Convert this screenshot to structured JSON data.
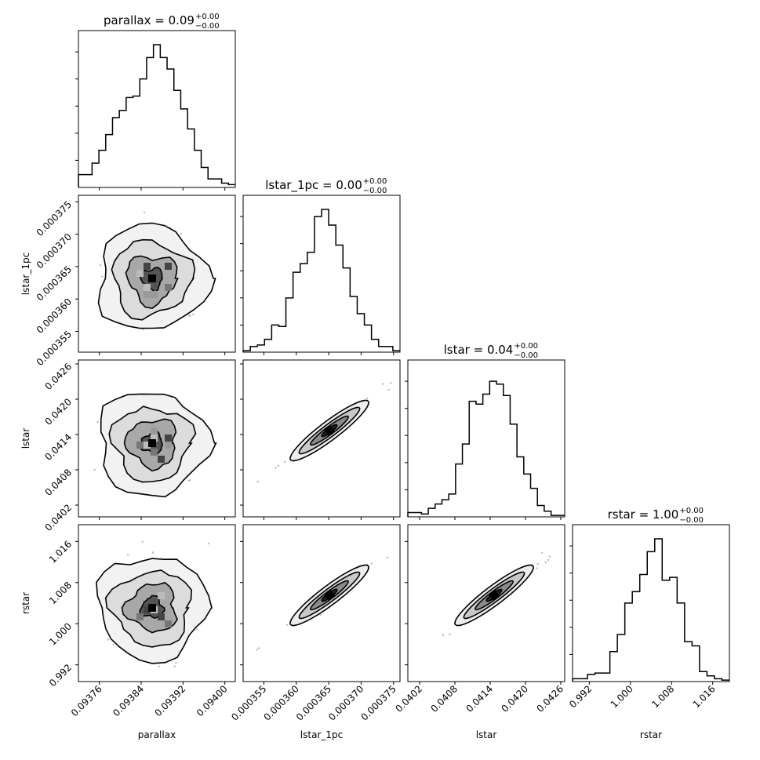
{
  "chart_data": {
    "type": "corner",
    "variables": [
      {
        "name": "parallax",
        "label": "parallax",
        "title": "parallax = 0.09",
        "range": [
          0.09372,
          0.09402
        ],
        "ticks": [
          "0.09376",
          "0.09384",
          "0.09392",
          "0.09400"
        ],
        "tick_values": [
          0.09376,
          0.09384,
          0.09392,
          0.094
        ],
        "err_sup": "+0.00",
        "err_sub": "−0.00",
        "hist": [
          0.09,
          0.09,
          0.17,
          0.26,
          0.37,
          0.49,
          0.54,
          0.63,
          0.64,
          0.76,
          0.91,
          1.0,
          0.91,
          0.83,
          0.68,
          0.55,
          0.41,
          0.26,
          0.14,
          0.06,
          0.06,
          0.03,
          0.02
        ]
      },
      {
        "name": "lstar_1pc",
        "label": "lstar_1pc",
        "title": "lstar_1pc = 0.00",
        "range": [
          0.0003518,
          0.000376
        ],
        "ticks": [
          "0.000355",
          "0.000360",
          "0.000365",
          "0.000370",
          "0.000375"
        ],
        "tick_values": [
          0.000355,
          0.00036,
          0.000365,
          0.00037,
          0.000375
        ],
        "err_sup": "+0.00",
        "err_sub": "−0.00",
        "hist": [
          0.01,
          0.04,
          0.05,
          0.09,
          0.19,
          0.18,
          0.38,
          0.56,
          0.62,
          0.7,
          0.95,
          1.0,
          0.89,
          0.75,
          0.59,
          0.39,
          0.27,
          0.19,
          0.09,
          0.04,
          0.04,
          0.01
        ]
      },
      {
        "name": "lstar",
        "label": "lstar",
        "title": "lstar = 0.04",
        "range": [
          0.04,
          0.042667
        ],
        "ticks": [
          "0.0402",
          "0.0408",
          "0.0414",
          "0.0420",
          "0.0426"
        ],
        "tick_values": [
          0.0402,
          0.0408,
          0.0414,
          0.042,
          0.0426
        ],
        "err_sup": "+0.00",
        "err_sub": "−0.00",
        "hist": [
          0.03,
          0.03,
          0.02,
          0.06,
          0.09,
          0.12,
          0.16,
          0.37,
          0.51,
          0.81,
          0.79,
          0.86,
          0.95,
          0.93,
          0.85,
          0.65,
          0.42,
          0.3,
          0.2,
          0.08,
          0.04,
          0.01,
          0.01
        ]
      },
      {
        "name": "rstar",
        "label": "rstar",
        "title": "rstar = 1.00",
        "range": [
          0.98875,
          1.01925
        ],
        "ticks": [
          "0.992",
          "1.000",
          "1.008",
          "1.016"
        ],
        "tick_values": [
          0.992,
          1.0,
          1.008,
          1.016
        ],
        "err_sup": "+0.00",
        "err_sub": "−0.00",
        "hist": [
          0.02,
          0.02,
          0.05,
          0.06,
          0.06,
          0.21,
          0.33,
          0.55,
          0.63,
          0.75,
          0.91,
          1.0,
          0.71,
          0.73,
          0.55,
          0.28,
          0.25,
          0.07,
          0.04,
          0.02,
          0.01
        ]
      }
    ],
    "pairs": [
      {
        "row": 1,
        "col": 0,
        "rho": 0.0
      },
      {
        "row": 2,
        "col": 0,
        "rho": 0.0
      },
      {
        "row": 2,
        "col": 1,
        "rho": 0.99
      },
      {
        "row": 3,
        "col": 0,
        "rho": 0.0
      },
      {
        "row": 3,
        "col": 1,
        "rho": 0.98
      },
      {
        "row": 3,
        "col": 2,
        "rho": 0.985
      }
    ]
  }
}
